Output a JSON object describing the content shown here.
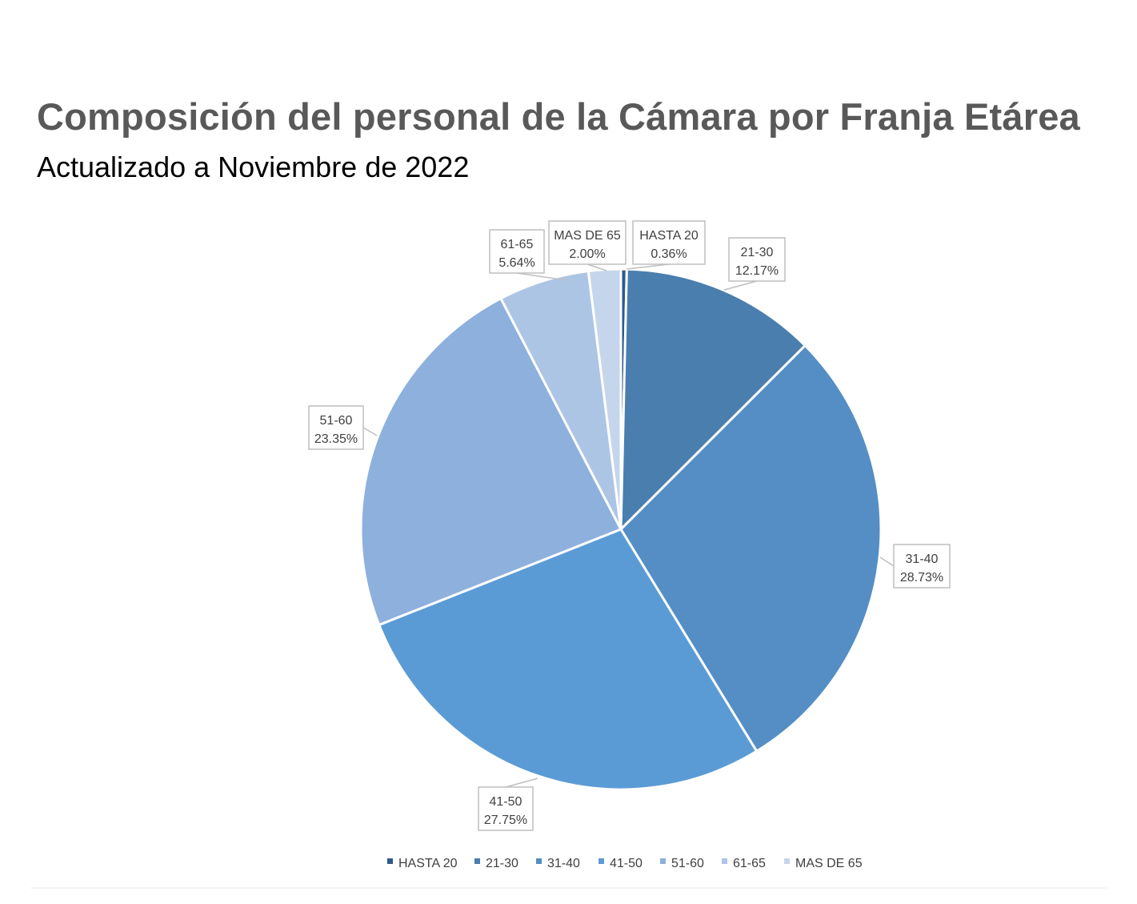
{
  "chart_data": {
    "type": "pie",
    "title": "Composición del personal de la Cámara por Franja Etárea",
    "subtitle": "Actualizado a Noviembre de 2022",
    "categories": [
      "HASTA 20",
      "21-30",
      "31-40",
      "41-50",
      "51-60",
      "61-65",
      "MAS DE 65"
    ],
    "values": [
      0.36,
      12.17,
      28.73,
      27.75,
      23.35,
      5.64,
      2.0
    ],
    "data_labels": [
      "0.36%",
      "12.17%",
      "28.73%",
      "27.75%",
      "23.35%",
      "5.64%",
      "2.00%"
    ],
    "colors": [
      "#2e5a8a",
      "#4a7eae",
      "#548ec5",
      "#5b9bd5",
      "#8db0dd",
      "#adc5e5",
      "#c5d6ec"
    ],
    "legend_position": "bottom",
    "start_angle_deg": 0,
    "direction": "clockwise"
  }
}
